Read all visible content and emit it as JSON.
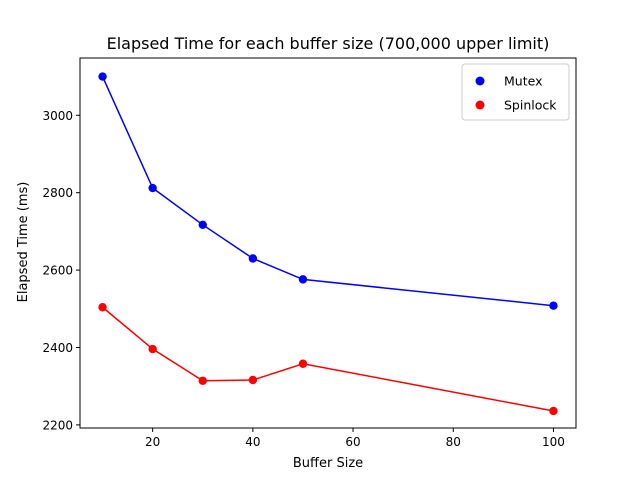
{
  "chart_data": {
    "type": "line",
    "title": "Elapsed Time for each buffer size (700,000 upper limit)",
    "xlabel": "Buffer Size",
    "ylabel": "Elapsed Time (ms)",
    "xlim": [
      5.5,
      104.5
    ],
    "ylim": [
      2192,
      3148
    ],
    "xticks": [
      20,
      40,
      60,
      80,
      100
    ],
    "yticks": [
      2200,
      2400,
      2600,
      2800,
      3000
    ],
    "grid": false,
    "legend_position": "top-right",
    "x": [
      10,
      20,
      30,
      40,
      50,
      100
    ],
    "series": [
      {
        "name": "Mutex",
        "color": "#0000ff",
        "values": [
          3100,
          2812,
          2717,
          2630,
          2576,
          2508
        ]
      },
      {
        "name": "Spinlock",
        "color": "#ff0000",
        "values": [
          2504,
          2396,
          2314,
          2316,
          2358,
          2236
        ]
      }
    ]
  }
}
